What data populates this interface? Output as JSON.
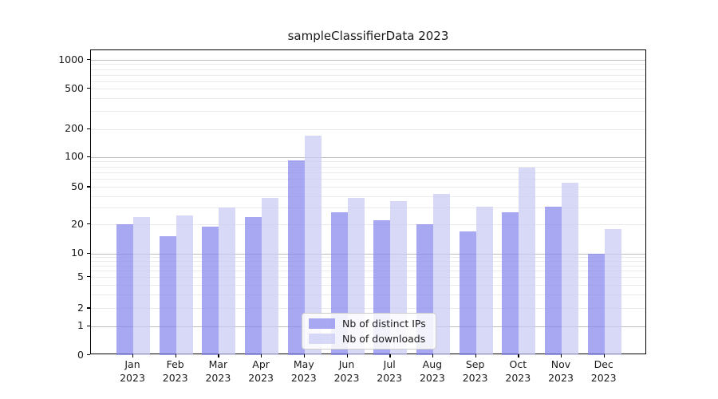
{
  "chart_data": {
    "type": "bar",
    "title": "sampleClassifierData 2023",
    "categories": [
      "Jan",
      "Feb",
      "Mar",
      "Apr",
      "May",
      "Jun",
      "Jul",
      "Aug",
      "Sep",
      "Oct",
      "Nov",
      "Dec"
    ],
    "year": "2023",
    "series": [
      {
        "name": "Nb of distinct IPs",
        "color": "#8686ed",
        "values": [
          20,
          15,
          19,
          24,
          92,
          27,
          22,
          20,
          17,
          27,
          31,
          10
        ]
      },
      {
        "name": "Nb of downloads",
        "color": "#c9c9f4",
        "values": [
          24,
          25,
          30,
          38,
          170,
          38,
          35,
          42,
          31,
          78,
          55,
          18
        ]
      }
    ],
    "y_axis": {
      "scale": "log-like (asinh, includes 0)",
      "tick_labels": [
        0,
        1,
        2,
        5,
        10,
        20,
        50,
        100,
        200,
        500,
        1000
      ],
      "major_gridlines": [
        1,
        10,
        100,
        1000
      ],
      "minor_gridlines": [
        2,
        3,
        4,
        5,
        6,
        7,
        8,
        9,
        20,
        30,
        40,
        50,
        60,
        70,
        80,
        90,
        200,
        300,
        400,
        500,
        600,
        700,
        800,
        900
      ],
      "ylim": [
        0,
        1000
      ]
    },
    "legend": {
      "position": "lower center"
    },
    "grid": "on"
  }
}
